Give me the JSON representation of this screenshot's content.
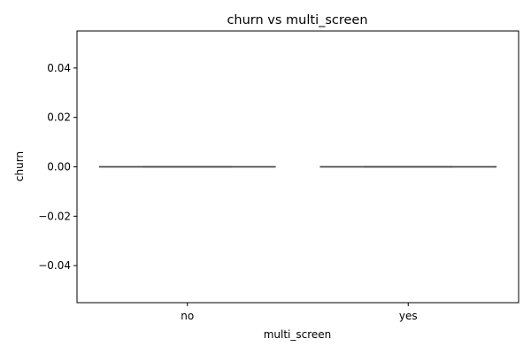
{
  "chart_data": {
    "type": "box",
    "title": "churn vs multi_screen",
    "xlabel": "multi_screen",
    "ylabel": "churn",
    "categories": [
      "no",
      "yes"
    ],
    "boxes": [
      {
        "category": "no",
        "min": 0,
        "q1": 0,
        "median": 0,
        "q3": 0,
        "max": 0
      },
      {
        "category": "yes",
        "min": 0,
        "q1": 0,
        "median": 0,
        "q3": 0,
        "max": 0
      }
    ],
    "ylim": [
      -0.055,
      0.055
    ],
    "yticks": [
      0.04,
      0.02,
      0.0,
      -0.02,
      -0.04
    ],
    "ytick_labels": [
      "0.04",
      "0.02",
      "0.00",
      "−0.02",
      "−0.04"
    ],
    "grid": false,
    "colors": {
      "box_line": "#4a4a4a",
      "axis": "#000000"
    }
  }
}
